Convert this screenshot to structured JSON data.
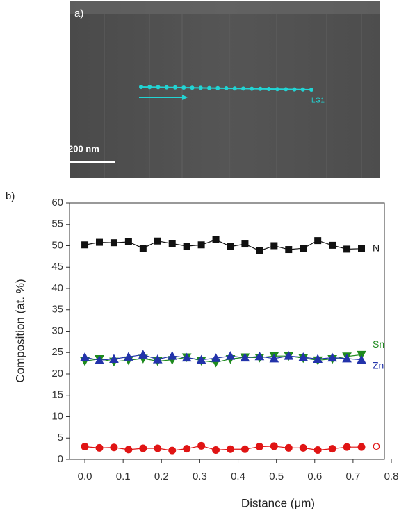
{
  "panel_a": {
    "label": "a)",
    "scale_bar": "200 nm",
    "line_label": "LG1"
  },
  "chart_data": {
    "type": "line",
    "panel_label": "b)",
    "x_label": "Distance (μm)",
    "y_label": "Composition (at. %)",
    "x": [
      0,
      0.038,
      0.076,
      0.114,
      0.152,
      0.19,
      0.228,
      0.266,
      0.304,
      0.342,
      0.38,
      0.418,
      0.456,
      0.494,
      0.532,
      0.57,
      0.608,
      0.646,
      0.684,
      0.722
    ],
    "series": [
      {
        "name": "N",
        "color": "#111111",
        "marker": "square",
        "values": [
          50.2,
          50.8,
          50.7,
          50.9,
          49.4,
          51.1,
          50.5,
          49.9,
          50.2,
          51.4,
          49.8,
          50.4,
          48.8,
          50.0,
          49.1,
          49.4,
          51.2,
          50.1,
          49.2,
          49.3
        ]
      },
      {
        "name": "Sn",
        "color": "#1e8a1e",
        "marker": "triangle-down",
        "values": [
          23.0,
          23.5,
          22.9,
          23.2,
          23.6,
          23.0,
          23.3,
          23.9,
          23.1,
          22.7,
          23.5,
          23.9,
          23.8,
          24.2,
          24.2,
          23.7,
          23.2,
          23.5,
          24.1,
          24.5
        ]
      },
      {
        "name": "Zn",
        "color": "#2233aa",
        "marker": "triangle-up",
        "values": [
          23.9,
          23.2,
          23.5,
          24.0,
          24.5,
          23.4,
          24.2,
          23.8,
          23.3,
          23.7,
          24.2,
          23.8,
          24.1,
          23.6,
          24.2,
          23.9,
          23.5,
          23.8,
          23.6,
          23.3
        ]
      },
      {
        "name": "O",
        "color": "#e01414",
        "marker": "circle",
        "values": [
          3.0,
          2.7,
          2.8,
          2.3,
          2.6,
          2.6,
          2.1,
          2.5,
          3.2,
          2.2,
          2.4,
          2.4,
          3.0,
          3.1,
          2.7,
          2.7,
          2.2,
          2.5,
          2.9,
          2.9
        ]
      }
    ],
    "xlim": [
      -0.04,
      0.8
    ],
    "ylim": [
      0,
      60
    ],
    "xticks": [
      {
        "value": 0,
        "label": "0.0"
      },
      0.1,
      0.2,
      0.3,
      0.4,
      0.5,
      0.6,
      0.7,
      0.8
    ],
    "yticks": [
      0,
      5,
      10,
      15,
      20,
      25,
      30,
      35,
      40,
      45,
      50,
      55,
      60
    ]
  }
}
